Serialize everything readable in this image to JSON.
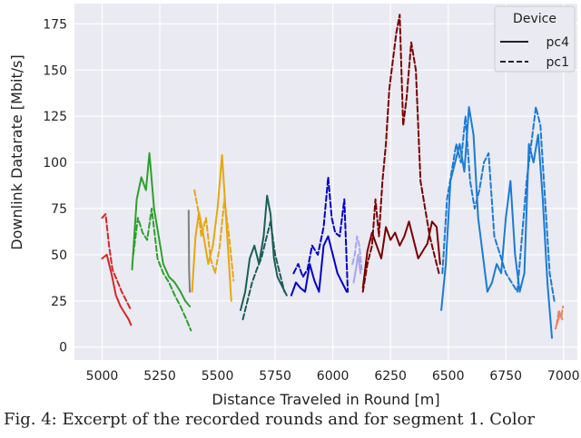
{
  "chart_data": {
    "type": "line",
    "xlabel": "Distance Traveled in Round [m]",
    "ylabel": "Downlink Datarate [Mbit/s]",
    "xlim": [
      4880,
      7060
    ],
    "ylim": [
      -7,
      186
    ],
    "xticks": [
      "5000",
      "5250",
      "5500",
      "5750",
      "6000",
      "6250",
      "6500",
      "6750",
      "7000"
    ],
    "yticks": [
      "0",
      "25",
      "50",
      "75",
      "100",
      "125",
      "150",
      "175"
    ],
    "grid": true,
    "legend": {
      "title": "Device",
      "placement": "top-right",
      "entries": [
        {
          "label": "pc4",
          "style": "solid"
        },
        {
          "label": "pc1",
          "style": "dashed"
        }
      ]
    },
    "series": [
      {
        "color": "#d62728",
        "style": "solid",
        "x": [
          5000,
          5020,
          5040,
          5060,
          5080,
          5100,
          5115,
          5125
        ],
        "y": [
          48,
          50,
          40,
          28,
          22,
          18,
          15,
          12
        ]
      },
      {
        "color": "#d62728",
        "style": "dashed",
        "x": [
          5000,
          5015,
          5030,
          5045,
          5065,
          5085,
          5105,
          5125
        ],
        "y": [
          70,
          72,
          55,
          42,
          36,
          30,
          25,
          20
        ]
      },
      {
        "color": "#2ca02c",
        "style": "solid",
        "x": [
          5130,
          5150,
          5170,
          5190,
          5205,
          5225,
          5245,
          5265,
          5290,
          5315,
          5340,
          5360,
          5380
        ],
        "y": [
          42,
          80,
          92,
          85,
          105,
          75,
          60,
          45,
          38,
          35,
          30,
          25,
          22
        ]
      },
      {
        "color": "#2ca02c",
        "style": "dashed",
        "x": [
          5135,
          5155,
          5175,
          5195,
          5215,
          5240,
          5265,
          5290,
          5315,
          5340,
          5365,
          5385
        ],
        "y": [
          50,
          70,
          62,
          58,
          75,
          48,
          40,
          35,
          28,
          22,
          15,
          9
        ]
      },
      {
        "color": "#7f7f7f",
        "style": "solid",
        "x": [
          5375,
          5377,
          5380
        ],
        "y": [
          74,
          42,
          30
        ]
      },
      {
        "color": "#e6a70f",
        "style": "solid",
        "x": [
          5390,
          5405,
          5420,
          5440,
          5460,
          5480,
          5500,
          5520,
          5540,
          5560
        ],
        "y": [
          30,
          60,
          73,
          60,
          45,
          55,
          75,
          104,
          65,
          25
        ]
      },
      {
        "color": "#e6a70f",
        "style": "dashed",
        "x": [
          5400,
          5415,
          5430,
          5450,
          5470,
          5490,
          5510,
          5530,
          5550,
          5570
        ],
        "y": [
          85,
          75,
          60,
          70,
          48,
          40,
          55,
          80,
          60,
          36
        ]
      },
      {
        "color": "#1b5e57",
        "style": "solid",
        "x": [
          5600,
          5620,
          5640,
          5660,
          5680,
          5700,
          5715,
          5730,
          5745,
          5760,
          5780,
          5800
        ],
        "y": [
          20,
          30,
          48,
          55,
          45,
          60,
          82,
          72,
          48,
          38,
          33,
          28
        ]
      },
      {
        "color": "#1b5e57",
        "style": "dashed",
        "x": [
          5610,
          5630,
          5650,
          5670,
          5690,
          5710,
          5730,
          5750,
          5770,
          5790
        ],
        "y": [
          15,
          25,
          35,
          42,
          48,
          58,
          68,
          50,
          40,
          30
        ]
      },
      {
        "color": "#0000cd",
        "style": "solid",
        "x": [
          5820,
          5840,
          5860,
          5880,
          5900,
          5920,
          5940,
          5960,
          5980,
          6000,
          6020,
          6040,
          6060
        ],
        "y": [
          28,
          35,
          32,
          30,
          45,
          36,
          30,
          55,
          60,
          50,
          40,
          35,
          30
        ]
      },
      {
        "color": "#0000cd",
        "style": "dashed",
        "x": [
          5830,
          5850,
          5870,
          5890,
          5910,
          5935,
          5960,
          5980,
          5995,
          6010,
          6030,
          6050,
          6065
        ],
        "y": [
          40,
          45,
          38,
          42,
          55,
          50,
          65,
          92,
          70,
          62,
          60,
          80,
          30
        ]
      },
      {
        "color": "#a9a4f0",
        "style": "solid",
        "x": [
          6090,
          6100,
          6110,
          6120
        ],
        "y": [
          35,
          42,
          50,
          40
        ]
      },
      {
        "color": "#a9a4f0",
        "style": "dashed",
        "x": [
          6085,
          6095,
          6105,
          6115,
          6125
        ],
        "y": [
          45,
          50,
          60,
          55,
          42
        ]
      },
      {
        "color": "#7b0000",
        "style": "solid",
        "x": [
          6130,
          6150,
          6170,
          6190,
          6210,
          6230,
          6250,
          6270,
          6290,
          6310,
          6330,
          6350,
          6370,
          6390,
          6410,
          6430,
          6450,
          6465
        ],
        "y": [
          32,
          52,
          62,
          55,
          48,
          65,
          58,
          62,
          55,
          60,
          68,
          58,
          48,
          52,
          56,
          68,
          65,
          45
        ]
      },
      {
        "color": "#7b0000",
        "style": "dashed",
        "x": [
          6130,
          6150,
          6170,
          6185,
          6200,
          6215,
          6230,
          6245,
          6260,
          6275,
          6290,
          6305,
          6320,
          6340,
          6360,
          6380,
          6400,
          6420,
          6440,
          6460
        ],
        "y": [
          30,
          45,
          55,
          80,
          60,
          90,
          110,
          140,
          155,
          170,
          180,
          120,
          135,
          165,
          150,
          90,
          75,
          60,
          50,
          40
        ]
      },
      {
        "color": "#1a7bd6",
        "style": "solid",
        "x": [
          6470,
          6490,
          6510,
          6530,
          6550,
          6570,
          6590,
          6610,
          6630,
          6650,
          6670,
          6690,
          6710,
          6730,
          6750,
          6770,
          6790,
          6810,
          6830,
          6850,
          6870,
          6890,
          6910,
          6930,
          6950
        ],
        "y": [
          20,
          45,
          90,
          100,
          110,
          95,
          130,
          115,
          70,
          50,
          30,
          35,
          45,
          40,
          70,
          90,
          50,
          30,
          40,
          110,
          100,
          115,
          80,
          35,
          5
        ]
      },
      {
        "color": "#1a7bd6",
        "style": "dashed",
        "x": [
          6475,
          6495,
          6515,
          6535,
          6555,
          6575,
          6595,
          6615,
          6635,
          6655,
          6675,
          6700,
          6725,
          6750,
          6775,
          6800,
          6820,
          6840,
          6860,
          6880,
          6900,
          6920,
          6940,
          6960
        ],
        "y": [
          40,
          80,
          95,
          110,
          100,
          125,
          90,
          75,
          85,
          100,
          105,
          60,
          50,
          40,
          35,
          30,
          60,
          90,
          110,
          130,
          120,
          80,
          40,
          25
        ]
      },
      {
        "color": "#f08062",
        "style": "solid",
        "x": [
          6965,
          6975,
          6985,
          6995
        ],
        "y": [
          10,
          14,
          18,
          15
        ]
      },
      {
        "color": "#f08062",
        "style": "dashed",
        "x": [
          6970,
          6980,
          6990,
          6998
        ],
        "y": [
          12,
          20,
          16,
          22
        ]
      }
    ]
  },
  "caption": "Fig. 4: Excerpt of the recorded rounds and for segment 1. Color"
}
